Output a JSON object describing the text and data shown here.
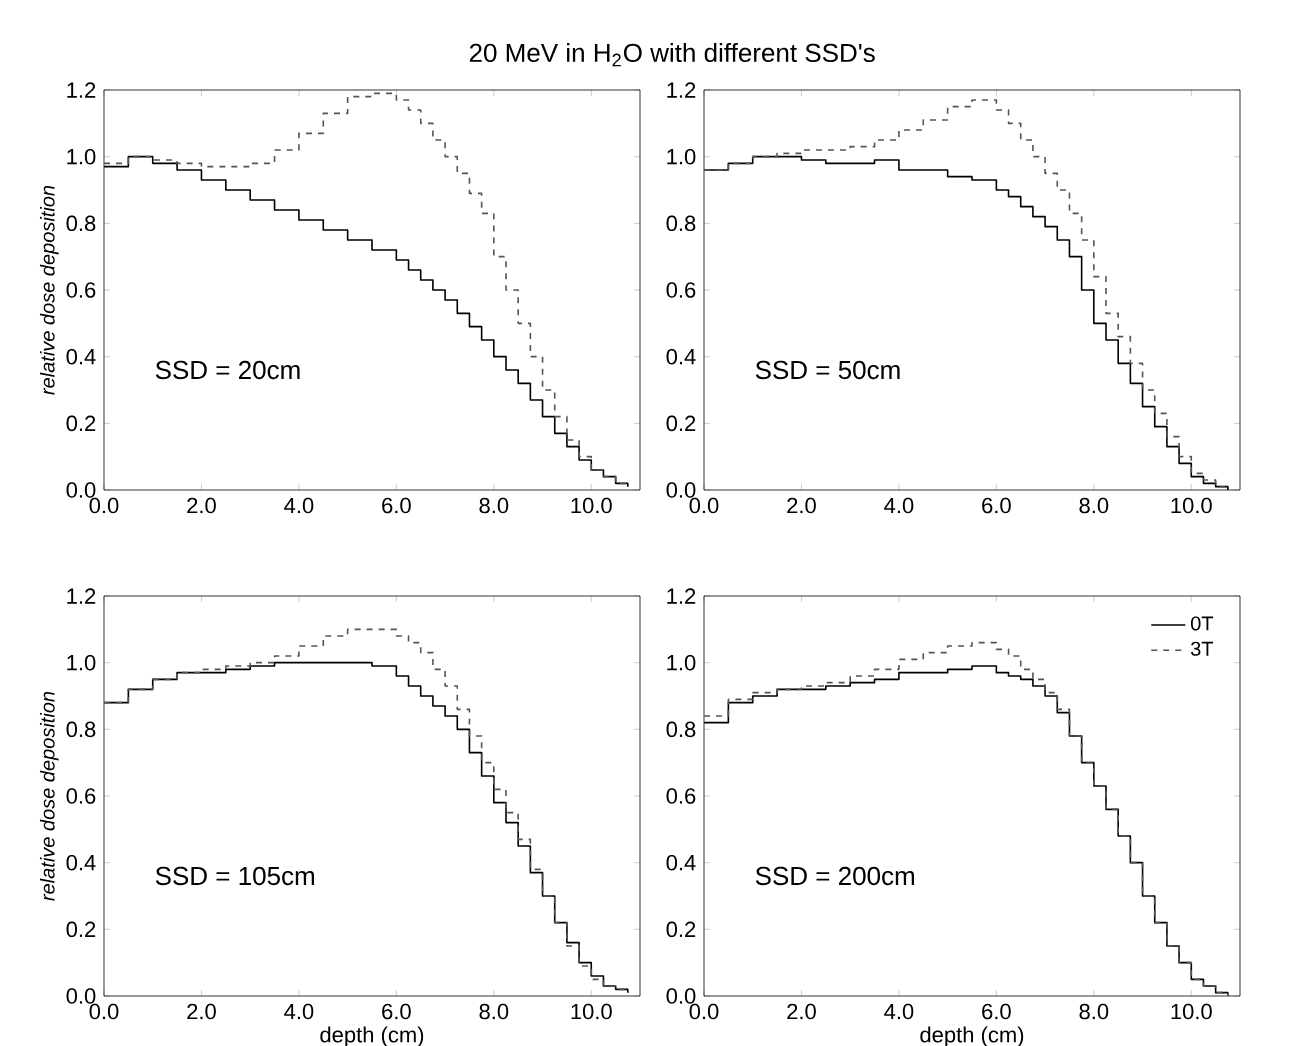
{
  "chart_data": [
    {
      "type": "step",
      "title": "20 MeV in H$_{2}$O with different SSD's",
      "ylabel": "relative dose deposition",
      "annotations": [
        "SSD = 20cm"
      ],
      "x": [
        0,
        0.5,
        1,
        1.5,
        2,
        2.5,
        3,
        3.5,
        4,
        4.5,
        5,
        5.5,
        6,
        6.25,
        6.5,
        6.75,
        7,
        7.25,
        7.5,
        7.75,
        8,
        8.25,
        8.5,
        8.75,
        9,
        9.25,
        9.5,
        9.75,
        10,
        10.25,
        10.5,
        10.75
      ],
      "series": [
        {
          "color": "#000000",
          "line_style": "solid",
          "values": [
            0.97,
            1.0,
            0.98,
            0.96,
            0.93,
            0.9,
            0.87,
            0.84,
            0.81,
            0.78,
            0.75,
            0.72,
            0.69,
            0.66,
            0.63,
            0.6,
            0.57,
            0.53,
            0.49,
            0.45,
            0.4,
            0.36,
            0.32,
            0.27,
            0.22,
            0.17,
            0.13,
            0.09,
            0.06,
            0.04,
            0.02,
            0.01
          ]
        },
        {
          "color": "#555555",
          "line_style": "dashed",
          "values": [
            0.98,
            1.0,
            0.99,
            0.98,
            0.97,
            0.97,
            0.98,
            1.02,
            1.07,
            1.13,
            1.18,
            1.19,
            1.17,
            1.14,
            1.1,
            1.05,
            1.0,
            0.95,
            0.89,
            0.83,
            0.7,
            0.6,
            0.5,
            0.4,
            0.3,
            0.22,
            0.15,
            0.1,
            0.06,
            0.04,
            0.02,
            0.01
          ]
        }
      ],
      "xlim": [
        0,
        11
      ],
      "ylim": [
        0,
        1.2
      ],
      "xticks": [
        {
          "value": 0,
          "label": "0.0"
        },
        {
          "value": 2,
          "label": "2.0"
        },
        {
          "value": 4,
          "label": "4.0"
        },
        {
          "value": 6,
          "label": "6.0"
        },
        {
          "value": 8,
          "label": "8.0"
        },
        {
          "value": 10,
          "label": "10.0"
        }
      ],
      "yticks": [
        {
          "value": 0,
          "label": "0.0"
        },
        {
          "value": 0.2,
          "label": "0.2"
        },
        {
          "value": 0.4,
          "label": "0.4"
        },
        {
          "value": 0.6,
          "label": "0.6"
        },
        {
          "value": 0.8,
          "label": "0.8"
        },
        {
          "value": 1.0,
          "label": "1.0"
        },
        {
          "value": 1.2,
          "label": "1.2"
        }
      ]
    },
    {
      "type": "step",
      "annotations": [
        "SSD = 50cm"
      ],
      "x": [
        0,
        0.5,
        1,
        1.5,
        2,
        2.5,
        3,
        3.5,
        4,
        4.5,
        5,
        5.5,
        6,
        6.25,
        6.5,
        6.75,
        7,
        7.25,
        7.5,
        7.75,
        8,
        8.25,
        8.5,
        8.75,
        9,
        9.25,
        9.5,
        9.75,
        10,
        10.25,
        10.5,
        10.75
      ],
      "series": [
        {
          "color": "#000000",
          "line_style": "solid",
          "values": [
            0.96,
            0.98,
            1.0,
            1.0,
            0.99,
            0.98,
            0.98,
            0.99,
            0.96,
            0.96,
            0.94,
            0.93,
            0.9,
            0.88,
            0.85,
            0.82,
            0.79,
            0.75,
            0.7,
            0.6,
            0.5,
            0.45,
            0.38,
            0.32,
            0.25,
            0.19,
            0.13,
            0.08,
            0.04,
            0.02,
            0.01,
            0.0
          ]
        },
        {
          "color": "#555555",
          "line_style": "dashed",
          "values": [
            0.96,
            0.98,
            1.0,
            1.01,
            1.02,
            1.02,
            1.03,
            1.05,
            1.08,
            1.11,
            1.15,
            1.17,
            1.14,
            1.1,
            1.05,
            1.0,
            0.95,
            0.9,
            0.83,
            0.75,
            0.64,
            0.53,
            0.46,
            0.38,
            0.3,
            0.23,
            0.16,
            0.1,
            0.05,
            0.03,
            0.01,
            0.0
          ]
        }
      ],
      "xlim": [
        0,
        11
      ],
      "ylim": [
        0,
        1.2
      ],
      "xticks": [
        {
          "value": 0,
          "label": "0.0"
        },
        {
          "value": 2,
          "label": "2.0"
        },
        {
          "value": 4,
          "label": "4.0"
        },
        {
          "value": 6,
          "label": "6.0"
        },
        {
          "value": 8,
          "label": "8.0"
        },
        {
          "value": 10,
          "label": "10.0"
        }
      ],
      "yticks": [
        {
          "value": 0,
          "label": "0.0"
        },
        {
          "value": 0.2,
          "label": "0.2"
        },
        {
          "value": 0.4,
          "label": "0.4"
        },
        {
          "value": 0.6,
          "label": "0.6"
        },
        {
          "value": 0.8,
          "label": "0.8"
        },
        {
          "value": 1.0,
          "label": "1.0"
        },
        {
          "value": 1.2,
          "label": "1.2"
        }
      ]
    },
    {
      "type": "step",
      "xlabel": "depth (cm)",
      "ylabel": "relative dose deposition",
      "annotations": [
        "SSD = 105cm"
      ],
      "x": [
        0,
        0.5,
        1,
        1.5,
        2,
        2.5,
        3,
        3.5,
        4,
        4.5,
        5,
        5.5,
        6,
        6.25,
        6.5,
        6.75,
        7,
        7.25,
        7.5,
        7.75,
        8,
        8.25,
        8.5,
        8.75,
        9,
        9.25,
        9.5,
        9.75,
        10,
        10.25,
        10.5,
        10.75
      ],
      "series": [
        {
          "color": "#000000",
          "line_style": "solid",
          "values": [
            0.88,
            0.92,
            0.95,
            0.97,
            0.97,
            0.98,
            0.99,
            1.0,
            1.0,
            1.0,
            1.0,
            0.99,
            0.96,
            0.93,
            0.9,
            0.87,
            0.84,
            0.8,
            0.73,
            0.66,
            0.58,
            0.52,
            0.45,
            0.37,
            0.3,
            0.22,
            0.16,
            0.1,
            0.06,
            0.03,
            0.02,
            0.01
          ]
        },
        {
          "color": "#555555",
          "line_style": "dashed",
          "values": [
            0.88,
            0.92,
            0.95,
            0.97,
            0.98,
            0.99,
            1.0,
            1.02,
            1.05,
            1.08,
            1.1,
            1.1,
            1.08,
            1.06,
            1.03,
            0.98,
            0.93,
            0.86,
            0.78,
            0.7,
            0.62,
            0.55,
            0.47,
            0.38,
            0.3,
            0.22,
            0.15,
            0.09,
            0.05,
            0.03,
            0.02,
            0.01
          ]
        }
      ],
      "xlim": [
        0,
        11
      ],
      "ylim": [
        0,
        1.2
      ],
      "xticks": [
        {
          "value": 0,
          "label": "0.0"
        },
        {
          "value": 2,
          "label": "2.0"
        },
        {
          "value": 4,
          "label": "4.0"
        },
        {
          "value": 6,
          "label": "6.0"
        },
        {
          "value": 8,
          "label": "8.0"
        },
        {
          "value": 10,
          "label": "10.0"
        }
      ],
      "yticks": [
        {
          "value": 0,
          "label": "0.0"
        },
        {
          "value": 0.2,
          "label": "0.2"
        },
        {
          "value": 0.4,
          "label": "0.4"
        },
        {
          "value": 0.6,
          "label": "0.6"
        },
        {
          "value": 0.8,
          "label": "0.8"
        },
        {
          "value": 1.0,
          "label": "1.0"
        },
        {
          "value": 1.2,
          "label": "1.2"
        }
      ]
    },
    {
      "type": "step",
      "xlabel": "depth (cm)",
      "annotations": [
        "SSD = 200cm"
      ],
      "legend": "top right",
      "x": [
        0,
        0.5,
        1,
        1.5,
        2,
        2.5,
        3,
        3.5,
        4,
        4.5,
        5,
        5.5,
        6,
        6.25,
        6.5,
        6.75,
        7,
        7.25,
        7.5,
        7.75,
        8,
        8.25,
        8.5,
        8.75,
        9,
        9.25,
        9.5,
        9.75,
        10,
        10.25,
        10.5,
        10.75
      ],
      "series": [
        {
          "name": "0T",
          "color": "#000000",
          "line_style": "solid",
          "values": [
            0.82,
            0.88,
            0.9,
            0.92,
            0.92,
            0.93,
            0.94,
            0.95,
            0.97,
            0.97,
            0.98,
            0.99,
            0.97,
            0.96,
            0.95,
            0.93,
            0.9,
            0.85,
            0.78,
            0.7,
            0.63,
            0.56,
            0.48,
            0.4,
            0.3,
            0.22,
            0.15,
            0.1,
            0.05,
            0.03,
            0.01,
            0.0
          ]
        },
        {
          "name": "3T",
          "color": "#555555",
          "line_style": "dashed",
          "values": [
            0.84,
            0.89,
            0.91,
            0.92,
            0.93,
            0.94,
            0.96,
            0.98,
            1.01,
            1.03,
            1.05,
            1.06,
            1.04,
            1.02,
            0.98,
            0.95,
            0.91,
            0.86,
            0.78,
            0.7,
            0.63,
            0.56,
            0.48,
            0.4,
            0.3,
            0.22,
            0.15,
            0.1,
            0.05,
            0.03,
            0.01,
            0.0
          ]
        }
      ],
      "xlim": [
        0,
        11
      ],
      "ylim": [
        0,
        1.2
      ],
      "xticks": [
        {
          "value": 0,
          "label": "0.0"
        },
        {
          "value": 2,
          "label": "2.0"
        },
        {
          "value": 4,
          "label": "4.0"
        },
        {
          "value": 6,
          "label": "6.0"
        },
        {
          "value": 8,
          "label": "8.0"
        },
        {
          "value": 10,
          "label": "10.0"
        }
      ],
      "yticks": [
        {
          "value": 0,
          "label": "0.0"
        },
        {
          "value": 0.2,
          "label": "0.2"
        },
        {
          "value": 0.4,
          "label": "0.4"
        },
        {
          "value": 0.6,
          "label": "0.6"
        },
        {
          "value": 0.8,
          "label": "0.8"
        },
        {
          "value": 1.0,
          "label": "1.0"
        },
        {
          "value": 1.2,
          "label": "1.2"
        }
      ]
    }
  ]
}
